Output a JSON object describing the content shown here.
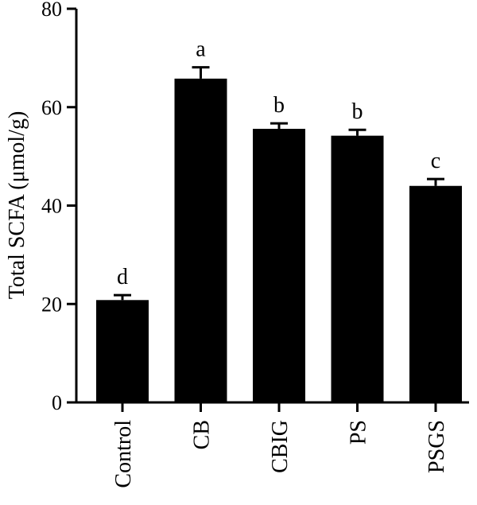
{
  "chart_data": {
    "type": "bar",
    "title": "",
    "xlabel": "",
    "ylabel": "Total SCFA (μmol/g)",
    "ylim": [
      0,
      80
    ],
    "yticks": [
      0,
      20,
      40,
      60,
      80
    ],
    "grid": false,
    "legend": "none",
    "categories": [
      "Control",
      "CB",
      "CBIG",
      "PS",
      "PSGS"
    ],
    "values": [
      20.8,
      65.8,
      55.6,
      54.2,
      44.0
    ],
    "errors": [
      1.0,
      2.3,
      1.1,
      1.2,
      1.4
    ],
    "significance": [
      "d",
      "a",
      "b",
      "b",
      "c"
    ],
    "bar_color": "#000000"
  }
}
